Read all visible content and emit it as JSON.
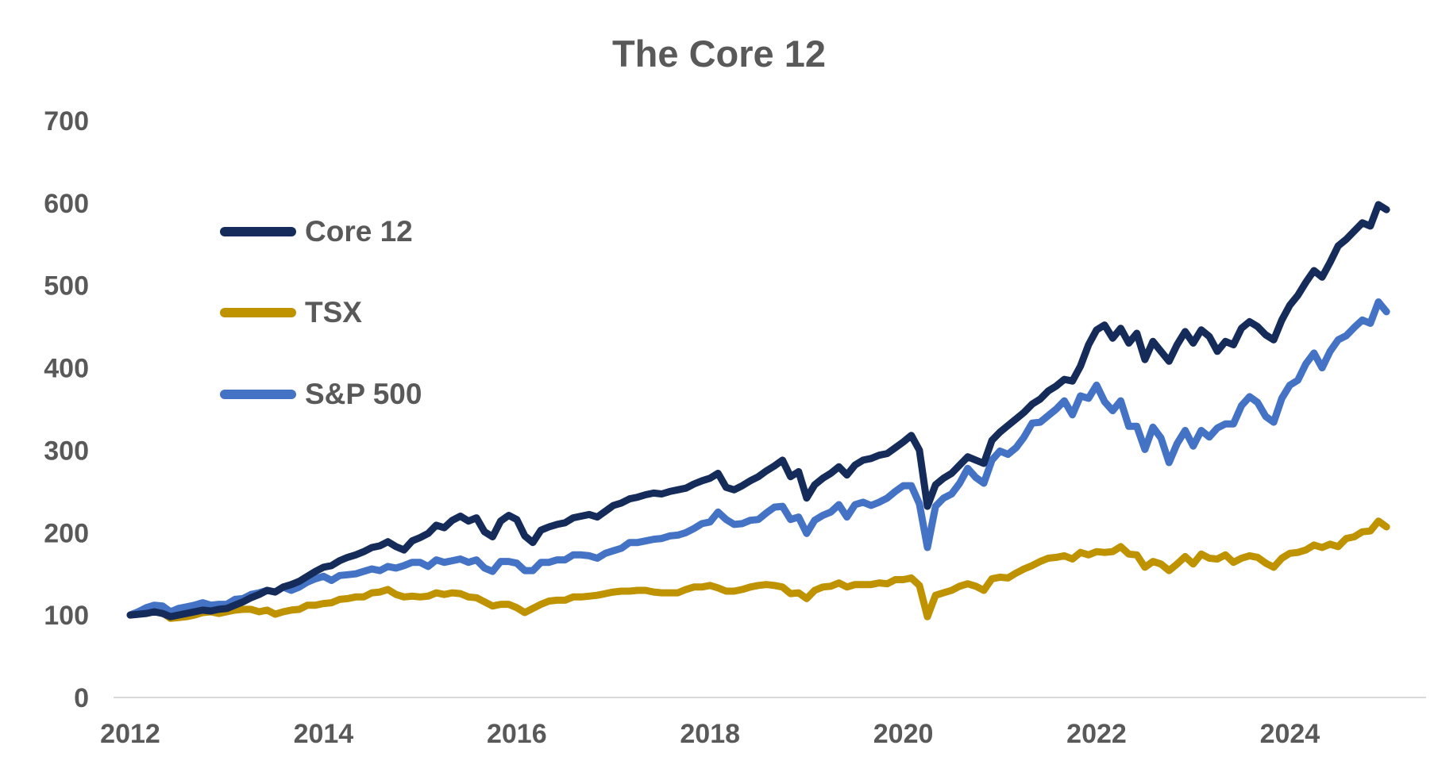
{
  "title": "The Core 12",
  "legend": [
    {
      "label": "Core 12",
      "color": "#152C5B"
    },
    {
      "label": "TSX",
      "color": "#BF9200"
    },
    {
      "label": "S&P 500",
      "color": "#4472C4"
    }
  ],
  "axes": {
    "y_tick_labels": [
      "0",
      "100",
      "200",
      "300",
      "400",
      "500",
      "600",
      "700"
    ],
    "x_tick_labels": [
      "2012",
      "2014",
      "2016",
      "2018",
      "2020",
      "2022",
      "2024"
    ]
  },
  "colors": {
    "text": "#595959",
    "axis_line": "#D9D9D9",
    "background": "#FFFFFF",
    "core12": "#152C5B",
    "tsx": "#BF9200",
    "sp500": "#4472C4"
  },
  "chart_data": {
    "type": "line",
    "title": "The Core 12",
    "x_note": "monthly index values, first point Jan 2012 = 100, last point Dec 2024",
    "x_start_year": 2012,
    "x_step_months": 1,
    "ylim": [
      0,
      700
    ],
    "y_ticks": [
      0,
      100,
      200,
      300,
      400,
      500,
      600,
      700
    ],
    "x_tick_years": [
      2012,
      2014,
      2016,
      2018,
      2020,
      2022,
      2024
    ],
    "grid": false,
    "legend_position": "inside top-left",
    "draw_order": [
      1,
      2,
      0
    ],
    "series": [
      {
        "name": "Core 12",
        "color": "#152C5B",
        "values": [
          100,
          101,
          102,
          104,
          102,
          98,
          100,
          102,
          104,
          106,
          105,
          107,
          108,
          112,
          116,
          121,
          125,
          130,
          128,
          134,
          137,
          141,
          147,
          153,
          158,
          160,
          166,
          170,
          173,
          177,
          182,
          184,
          189,
          183,
          179,
          190,
          194,
          199,
          209,
          206,
          215,
          220,
          214,
          218,
          201,
          195,
          214,
          221,
          216,
          196,
          188,
          203,
          207,
          210,
          212,
          218,
          220,
          222,
          219,
          226,
          233,
          236,
          241,
          243,
          246,
          248,
          247,
          250,
          252,
          254,
          259,
          263,
          266,
          272,
          255,
          252,
          257,
          263,
          268,
          275,
          281,
          288,
          268,
          274,
          242,
          258,
          266,
          272,
          280,
          270,
          282,
          288,
          290,
          294,
          296,
          303,
          310,
          318,
          300,
          232,
          258,
          266,
          272,
          282,
          292,
          288,
          284,
          312,
          322,
          330,
          338,
          346,
          356,
          362,
          372,
          378,
          386,
          384,
          402,
          428,
          446,
          452,
          436,
          448,
          430,
          442,
          410,
          432,
          420,
          408,
          428,
          444,
          430,
          446,
          438,
          420,
          432,
          428,
          448,
          456,
          450,
          440,
          434,
          458,
          476,
          488,
          504,
          518,
          510,
          528,
          548,
          556,
          566,
          576,
          572,
          598,
          592
        ]
      },
      {
        "name": "TSX",
        "color": "#BF9200",
        "values": [
          100,
          104,
          106,
          104,
          103,
          96,
          97,
          98,
          100,
          103,
          104,
          102,
          104,
          106,
          107,
          107,
          104,
          106,
          101,
          104,
          106,
          107,
          112,
          112,
          114,
          115,
          119,
          120,
          122,
          122,
          127,
          128,
          131,
          125,
          122,
          123,
          122,
          123,
          127,
          125,
          127,
          126,
          122,
          121,
          116,
          111,
          113,
          113,
          109,
          103,
          108,
          113,
          117,
          118,
          118,
          122,
          122,
          123,
          124,
          126,
          128,
          129,
          129,
          130,
          130,
          128,
          127,
          127,
          127,
          131,
          134,
          134,
          136,
          133,
          129,
          129,
          131,
          134,
          136,
          137,
          136,
          134,
          126,
          127,
          120,
          130,
          134,
          135,
          139,
          134,
          137,
          137,
          137,
          139,
          138,
          143,
          143,
          145,
          136,
          98,
          124,
          127,
          130,
          135,
          138,
          135,
          130,
          144,
          146,
          145,
          151,
          156,
          160,
          165,
          169,
          170,
          172,
          168,
          176,
          173,
          177,
          176,
          177,
          183,
          174,
          173,
          158,
          165,
          162,
          154,
          162,
          171,
          162,
          174,
          169,
          168,
          173,
          164,
          169,
          172,
          170,
          163,
          158,
          169,
          175,
          176,
          179,
          185,
          182,
          186,
          183,
          193,
          195,
          201,
          202,
          214,
          207
        ]
      },
      {
        "name": "S&P 500",
        "color": "#4472C4",
        "values": [
          100,
          104,
          109,
          112,
          111,
          104,
          108,
          110,
          112,
          115,
          112,
          113,
          113,
          119,
          120,
          125,
          127,
          130,
          128,
          134,
          130,
          134,
          140,
          144,
          147,
          142,
          148,
          149,
          150,
          153,
          156,
          154,
          159,
          157,
          160,
          164,
          164,
          159,
          167,
          164,
          166,
          168,
          164,
          167,
          157,
          153,
          165,
          165,
          163,
          154,
          154,
          164,
          164,
          167,
          167,
          173,
          173,
          172,
          169,
          175,
          178,
          181,
          188,
          188,
          190,
          192,
          193,
          196,
          197,
          200,
          205,
          211,
          213,
          225,
          216,
          210,
          211,
          215,
          216,
          224,
          231,
          232,
          216,
          219,
          199,
          215,
          221,
          225,
          234,
          219,
          234,
          237,
          233,
          237,
          242,
          250,
          257,
          257,
          235,
          182,
          232,
          242,
          247,
          260,
          278,
          267,
          260,
          288,
          299,
          295,
          303,
          316,
          333,
          334,
          342,
          350,
          360,
          343,
          366,
          363,
          379,
          359,
          348,
          360,
          329,
          329,
          301,
          328,
          315,
          285,
          308,
          324,
          305,
          324,
          316,
          327,
          332,
          332,
          354,
          365,
          358,
          341,
          334,
          363,
          379,
          385,
          405,
          418,
          400,
          420,
          434,
          439,
          449,
          458,
          454,
          480,
          468
        ]
      }
    ]
  }
}
